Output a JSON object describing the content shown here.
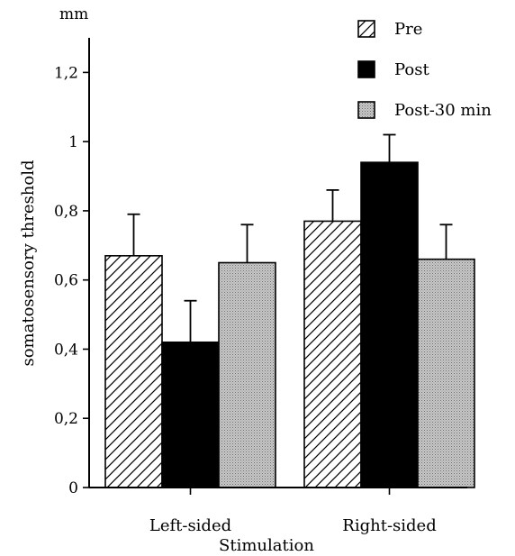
{
  "chart_data": {
    "type": "bar",
    "title": "",
    "unit": "mm",
    "xlabel": "Stimulation",
    "ylabel": "somatosensory threshold",
    "categories": [
      "Left-sided",
      "Right-sided"
    ],
    "ylim": [
      0,
      1.3
    ],
    "yticks": [
      {
        "value": 0,
        "label": "0"
      },
      {
        "value": 0.2,
        "label": "0,2"
      },
      {
        "value": 0.4,
        "label": "0,4"
      },
      {
        "value": 0.6,
        "label": "0,6"
      },
      {
        "value": 0.8,
        "label": "0,8"
      },
      {
        "value": 1.0,
        "label": "1"
      },
      {
        "value": 1.2,
        "label": "1,2"
      }
    ],
    "series": [
      {
        "name": "Pre",
        "pattern": "hatch",
        "values": [
          0.67,
          0.77
        ],
        "errors": [
          0.12,
          0.09
        ]
      },
      {
        "name": "Post",
        "pattern": "solid",
        "values": [
          0.42,
          0.94
        ],
        "errors": [
          0.12,
          0.08
        ]
      },
      {
        "name": "Post-30 min",
        "pattern": "stipple",
        "values": [
          0.65,
          0.66
        ],
        "errors": [
          0.11,
          0.1
        ]
      }
    ],
    "grid": false,
    "legend": "top-right",
    "colors": {
      "ink": "#000000",
      "stipple_fill": "#c8c8c8",
      "background": "#ffffff"
    }
  }
}
